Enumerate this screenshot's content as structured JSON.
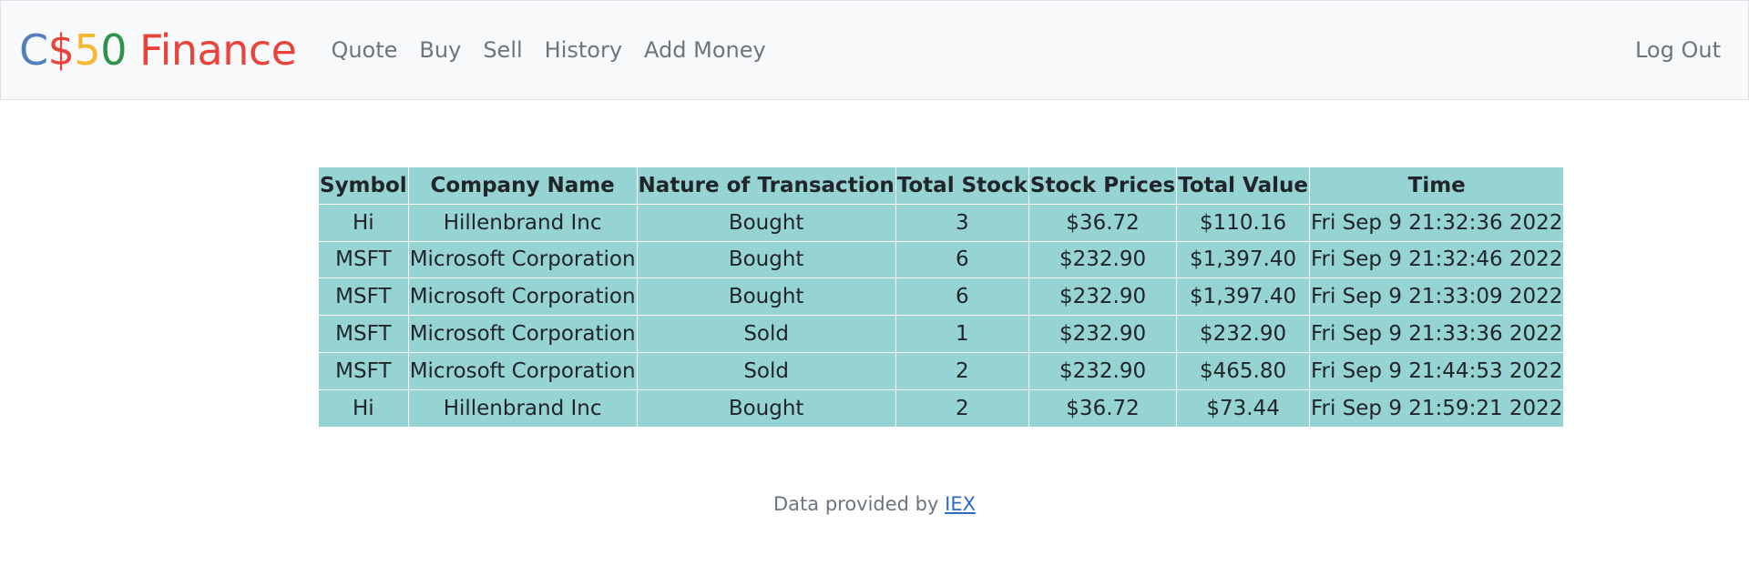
{
  "brand": {
    "c": "C",
    "dollar": "$",
    "five": "5",
    "zero": "0",
    "finance": "Finance"
  },
  "nav": {
    "items": [
      "Quote",
      "Buy",
      "Sell",
      "History",
      "Add Money"
    ],
    "logout": "Log Out"
  },
  "history_table": {
    "headers": [
      "Symbol",
      "Company Name",
      "Nature of Transaction",
      "Total Stock",
      "Stock Prices",
      "Total Value",
      "Time"
    ],
    "rows": [
      [
        "Hi",
        "Hillenbrand Inc",
        "Bought",
        "3",
        "$36.72",
        "$110.16",
        "Fri Sep 9 21:32:36 2022"
      ],
      [
        "MSFT",
        "Microsoft Corporation",
        "Bought",
        "6",
        "$232.90",
        "$1,397.40",
        "Fri Sep 9 21:32:46 2022"
      ],
      [
        "MSFT",
        "Microsoft Corporation",
        "Bought",
        "6",
        "$232.90",
        "$1,397.40",
        "Fri Sep 9 21:33:09 2022"
      ],
      [
        "MSFT",
        "Microsoft Corporation",
        "Sold",
        "1",
        "$232.90",
        "$232.90",
        "Fri Sep 9 21:33:36 2022"
      ],
      [
        "MSFT",
        "Microsoft Corporation",
        "Sold",
        "2",
        "$232.90",
        "$465.80",
        "Fri Sep 9 21:44:53 2022"
      ],
      [
        "Hi",
        "Hillenbrand Inc",
        "Bought",
        "2",
        "$36.72",
        "$73.44",
        "Fri Sep 9 21:59:21 2022"
      ]
    ]
  },
  "footer": {
    "text": "Data provided by ",
    "link": "IEX"
  }
}
